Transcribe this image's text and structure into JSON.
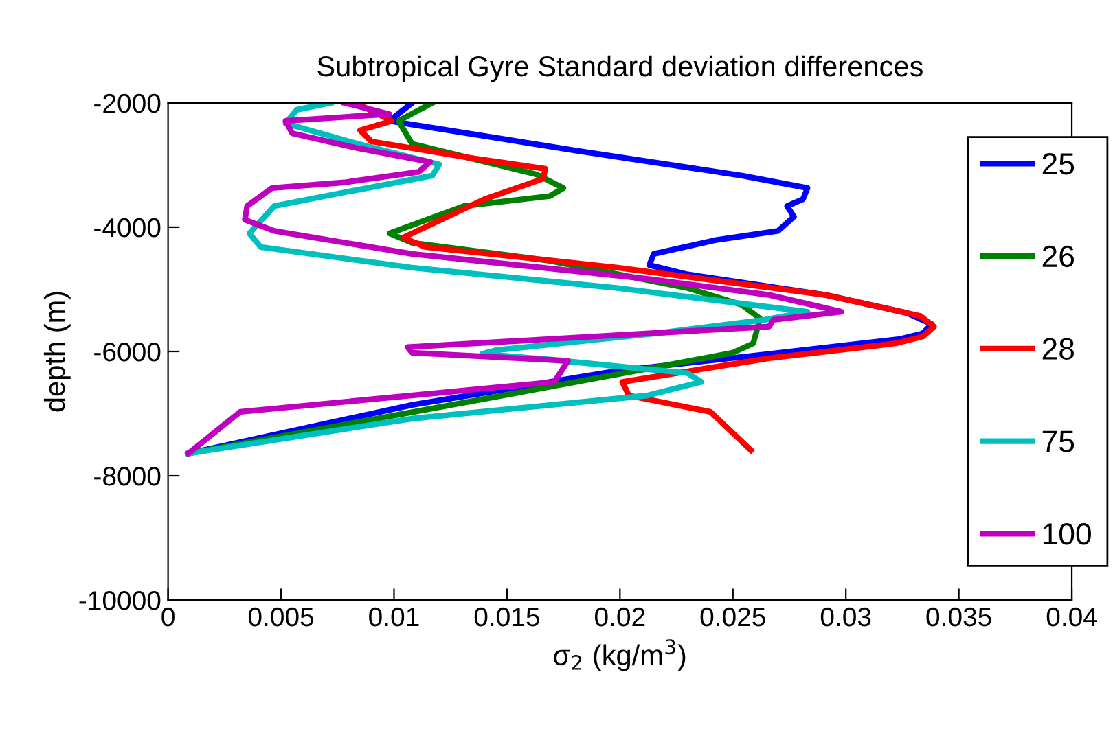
{
  "chart_data": {
    "type": "line",
    "title": "Subtropical Gyre Standard deviation differences",
    "xlabel": "σ$_{2}$ (kg/m$^{3}$)",
    "ylabel": "depth (m)",
    "xlim": [
      0,
      0.04
    ],
    "xticks": [
      0,
      0.005,
      0.01,
      0.015,
      0.02,
      0.025,
      0.03,
      0.035,
      0.04
    ],
    "ylim": [
      -10000,
      -2000
    ],
    "yticks": [
      -10000,
      -8000,
      -6000,
      -4000,
      -2000
    ],
    "grid": false,
    "legend": "right",
    "line_style": "solid",
    "marker": "none",
    "series": [
      {
        "name": "25",
        "color": "#0000ff",
        "x": [
          0.0108,
          0.0098,
          0.0181,
          0.0254,
          0.0283,
          0.0281,
          0.0274,
          0.0277,
          0.027,
          0.0242,
          0.0215,
          0.0213,
          0.023,
          0.0291,
          0.0327,
          0.0338,
          0.0334,
          0.0324,
          0.0266,
          0.0199,
          0.0169,
          0.0108,
          0.0009
        ],
        "values": [
          -2000,
          -2290,
          -2770,
          -3170,
          -3370,
          -3550,
          -3660,
          -3830,
          -4060,
          -4210,
          -4430,
          -4610,
          -4760,
          -5090,
          -5380,
          -5560,
          -5710,
          -5800,
          -6040,
          -6310,
          -6490,
          -6860,
          -7640
        ]
      },
      {
        "name": "26",
        "color": "#008000",
        "x": [
          0.0117,
          0.0102,
          0.0108,
          0.0163,
          0.0175,
          0.0169,
          0.0131,
          0.0098,
          0.0108,
          0.0169,
          0.023,
          0.0254,
          0.0262,
          0.0259,
          0.025,
          0.0218,
          0.0009
        ],
        "values": [
          -2000,
          -2290,
          -2660,
          -3150,
          -3370,
          -3500,
          -3660,
          -4100,
          -4250,
          -4540,
          -4980,
          -5250,
          -5470,
          -5870,
          -6020,
          -6240,
          -7640
        ]
      },
      {
        "name": "28",
        "color": "#ff0000",
        "x": [
          0.0083,
          0.0099,
          0.0085,
          0.009,
          0.0133,
          0.0167,
          0.0166,
          0.014,
          0.0104,
          0.0114,
          0.0199,
          0.0291,
          0.0333,
          0.0339,
          0.0334,
          0.0322,
          0.0266,
          0.0201,
          0.0204,
          0.024,
          0.0258
        ],
        "values": [
          -2000,
          -2290,
          -2440,
          -2620,
          -2880,
          -3060,
          -3220,
          -3550,
          -4170,
          -4320,
          -4650,
          -5090,
          -5430,
          -5600,
          -5760,
          -5870,
          -6110,
          -6490,
          -6710,
          -6970,
          -7590
        ]
      },
      {
        "name": "75",
        "color": "#00bfbf",
        "x": [
          0.0072,
          0.0057,
          0.0052,
          0.0084,
          0.012,
          0.0117,
          0.0078,
          0.0047,
          0.0036,
          0.0041,
          0.0108,
          0.0199,
          0.0283,
          0.0264,
          0.0216,
          0.0145,
          0.0139,
          0.0169,
          0.023,
          0.0236,
          0.0212,
          0.0108,
          0.0009
        ],
        "values": [
          -2000,
          -2110,
          -2330,
          -2660,
          -2990,
          -3170,
          -3440,
          -3660,
          -4100,
          -4320,
          -4650,
          -4980,
          -5360,
          -5490,
          -5710,
          -5980,
          -6040,
          -6130,
          -6350,
          -6490,
          -6710,
          -7080,
          -7640
        ]
      },
      {
        "name": "100",
        "color": "#bf00bf",
        "x": [
          0.0078,
          0.0098,
          0.0052,
          0.0055,
          0.0084,
          0.0116,
          0.0111,
          0.0078,
          0.0046,
          0.0035,
          0.0034,
          0.0047,
          0.0108,
          0.0212,
          0.0266,
          0.0298,
          0.0268,
          0.0266,
          0.0169,
          0.0106,
          0.0108,
          0.0177,
          0.0171,
          0.0032,
          0.0009
        ],
        "values": [
          -2000,
          -2180,
          -2290,
          -2490,
          -2730,
          -2950,
          -3110,
          -3280,
          -3370,
          -3660,
          -3880,
          -4060,
          -4430,
          -4830,
          -5090,
          -5360,
          -5490,
          -5600,
          -5800,
          -5930,
          -6020,
          -6150,
          -6490,
          -6970,
          -7640
        ]
      }
    ]
  }
}
